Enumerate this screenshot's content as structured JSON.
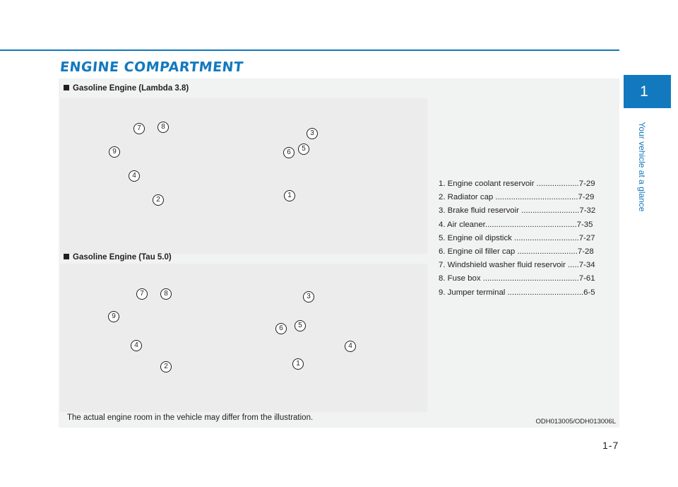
{
  "header": {
    "title": "ENGINE COMPARTMENT"
  },
  "sections": [
    {
      "label": "Gasoline Engine (Lambda 3.8)"
    },
    {
      "label": "Gasoline Engine (Tau 5.0)"
    }
  ],
  "callouts_top": [
    "7",
    "8",
    "3",
    "9",
    "6",
    "5",
    "4",
    "2",
    "1"
  ],
  "callouts_bottom": [
    "7",
    "8",
    "3",
    "9",
    "6",
    "5",
    "4",
    "4",
    "2",
    "1"
  ],
  "legend": [
    "1. Engine coolant reservoir ...................7-29",
    "2. Radiator cap .....................................7-29",
    "3. Brake fluid reservoir ..........................7-32",
    "4. Air cleaner.........................................7-35",
    "5. Engine oil dipstick .............................7-27",
    "6. Engine oil filler cap ...........................7-28",
    "7. Windshield washer fluid reservoir .....7-34",
    "8. Fuse box ...........................................7-61",
    "9. Jumper terminal ..................................6-5"
  ],
  "disclaimer": "The actual engine room in the vehicle may differ from the illustration.",
  "ref_code": "ODH013005/ODH013006L",
  "side_tab": {
    "chapter": "1",
    "text": "Your vehicle at a glance"
  },
  "page_number": "1-7",
  "colors": {
    "accent": "#1279be",
    "panel": "#f1f2f2"
  }
}
